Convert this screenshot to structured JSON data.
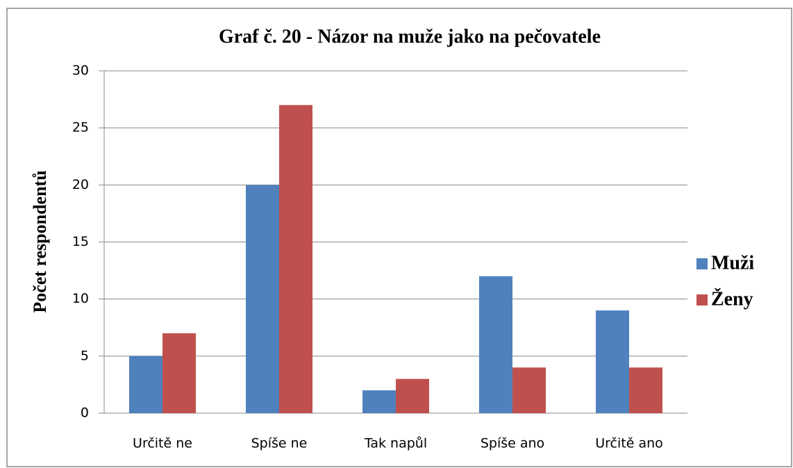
{
  "chart_data": {
    "type": "bar",
    "title": "Graf č. 20 - Názor na muže jako na pečovatele",
    "y_label": "Počet respondentů",
    "categories": [
      "Určitě ne",
      "Spíše ne",
      "Tak napůl",
      "Spíše ano",
      "Určitě ano"
    ],
    "series": [
      {
        "name": "Muži",
        "color": "#4f81bd",
        "values": [
          5,
          20,
          2,
          12,
          9
        ]
      },
      {
        "name": "Ženy",
        "color": "#c0504d",
        "values": [
          7,
          27,
          3,
          4,
          4
        ]
      }
    ],
    "ylim": [
      0,
      30
    ],
    "yticks": [
      0,
      5,
      10,
      15,
      20,
      25,
      30
    ],
    "grid": true,
    "legend": "right"
  }
}
